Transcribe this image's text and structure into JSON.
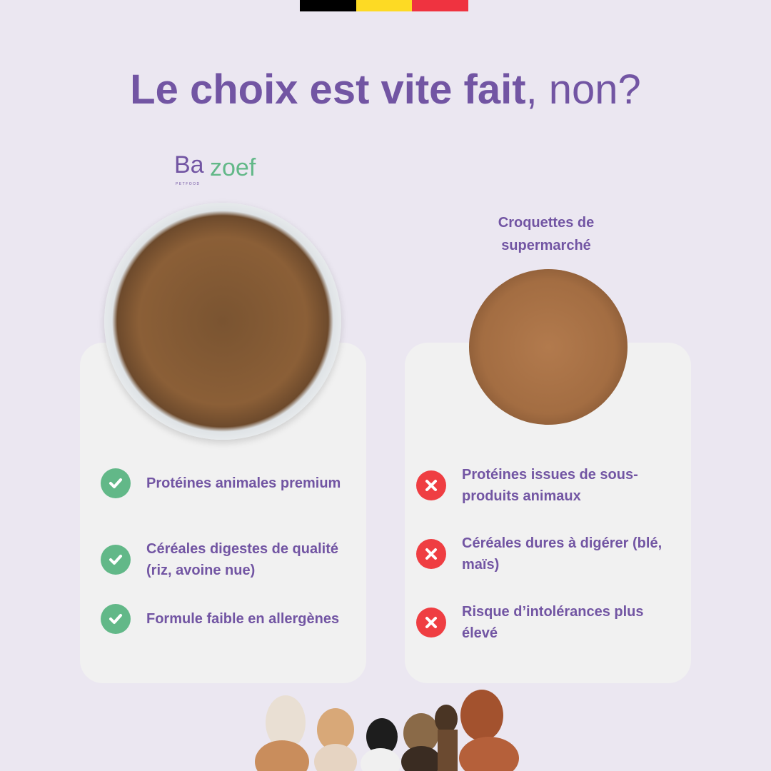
{
  "flag_colors": [
    "#000000",
    "#fdda24",
    "#ef3340"
  ],
  "title": {
    "bold": "Le choix est vite fait",
    "light": ", non?"
  },
  "brand_logo": {
    "text": "Bazoef",
    "subtext": "PETFOOD",
    "colors": [
      "#7255a3",
      "#62b888"
    ]
  },
  "colors": {
    "background": "#ebe7f1",
    "card": "#f1f1f1",
    "purple": "#7255a3",
    "green": "#62b888",
    "red": "#ef3e42"
  },
  "left": {
    "icon": "check-circle-icon",
    "items": [
      {
        "text": "Protéines animales premium"
      },
      {
        "text": "Céréales digestes de qualité (riz, avoine nue)"
      },
      {
        "text": "Formule faible en allergènes"
      }
    ]
  },
  "right": {
    "title": "Croquettes de supermarché",
    "icon": "x-circle-icon",
    "items": [
      {
        "text": "Protéines issues de sous-produits animaux"
      },
      {
        "text": "Céréales dures à digérer (blé, maïs)"
      },
      {
        "text": "Risque d’intolérances plus élevé"
      }
    ]
  }
}
